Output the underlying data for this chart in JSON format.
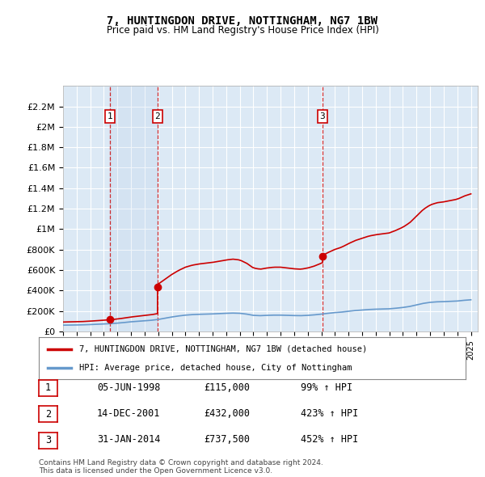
{
  "title": "7, HUNTINGDON DRIVE, NOTTINGHAM, NG7 1BW",
  "subtitle": "Price paid vs. HM Land Registry's House Price Index (HPI)",
  "ylim": [
    0,
    2400000
  ],
  "yticks": [
    0,
    200000,
    400000,
    600000,
    800000,
    1000000,
    1200000,
    1400000,
    1600000,
    1800000,
    2000000,
    2200000
  ],
  "ytick_labels": [
    "£0",
    "£200K",
    "£400K",
    "£600K",
    "£800K",
    "£1M",
    "£1.2M",
    "£1.4M",
    "£1.6M",
    "£1.8M",
    "£2M",
    "£2.2M"
  ],
  "sale_years": [
    1998.43,
    2001.95,
    2014.08
  ],
  "sale_prices": [
    115000,
    432000,
    737500
  ],
  "sale_labels": [
    "1",
    "2",
    "3"
  ],
  "legend_entries": [
    {
      "label": "7, HUNTINGDON DRIVE, NOTTINGHAM, NG7 1BW (detached house)",
      "color": "#cc0000"
    },
    {
      "label": "HPI: Average price, detached house, City of Nottingham",
      "color": "#6699cc"
    }
  ],
  "table_rows": [
    {
      "num": "1",
      "date": "05-JUN-1998",
      "price": "£115,000",
      "hpi": "99% ↑ HPI"
    },
    {
      "num": "2",
      "date": "14-DEC-2001",
      "price": "£432,000",
      "hpi": "423% ↑ HPI"
    },
    {
      "num": "3",
      "date": "31-JAN-2014",
      "price": "£737,500",
      "hpi": "452% ↑ HPI"
    }
  ],
  "footer": "Contains HM Land Registry data © Crown copyright and database right 2024.\nThis data is licensed under the Open Government Licence v3.0.",
  "bg_color": "#ffffff",
  "plot_bg_color": "#dce9f5",
  "grid_color": "#ffffff",
  "red_color": "#cc0000",
  "blue_color": "#6699cc",
  "xmin": 1995.0,
  "xmax": 2025.5,
  "hpi_years": [
    1995.0,
    1995.5,
    1996.0,
    1996.5,
    1997.0,
    1997.5,
    1998.0,
    1998.5,
    1999.0,
    1999.5,
    2000.0,
    2000.5,
    2001.0,
    2001.5,
    2002.0,
    2002.5,
    2003.0,
    2003.5,
    2004.0,
    2004.5,
    2005.0,
    2005.5,
    2006.0,
    2006.5,
    2007.0,
    2007.5,
    2008.0,
    2008.5,
    2009.0,
    2009.5,
    2010.0,
    2010.5,
    2011.0,
    2011.5,
    2012.0,
    2012.5,
    2013.0,
    2013.5,
    2014.0,
    2014.5,
    2015.0,
    2015.5,
    2016.0,
    2016.5,
    2017.0,
    2017.5,
    2018.0,
    2018.5,
    2019.0,
    2019.5,
    2020.0,
    2020.5,
    2021.0,
    2021.5,
    2022.0,
    2022.5,
    2023.0,
    2023.5,
    2024.0,
    2024.5,
    2025.0
  ],
  "hpi_values": [
    62000,
    63000,
    64000,
    65500,
    68000,
    71000,
    74000,
    77000,
    82000,
    88000,
    95000,
    100000,
    105000,
    110000,
    118000,
    130000,
    142000,
    152000,
    160000,
    165000,
    168000,
    170000,
    172000,
    175000,
    178000,
    180000,
    178000,
    170000,
    158000,
    155000,
    158000,
    160000,
    160000,
    158000,
    156000,
    155000,
    158000,
    163000,
    170000,
    178000,
    185000,
    190000,
    198000,
    205000,
    210000,
    215000,
    218000,
    220000,
    222000,
    228000,
    235000,
    245000,
    260000,
    275000,
    285000,
    290000,
    292000,
    295000,
    298000,
    305000,
    310000
  ],
  "hpi_at_sale1": 77000,
  "hpi_at_sale2": 110000,
  "hpi_at_sale3": 170000
}
